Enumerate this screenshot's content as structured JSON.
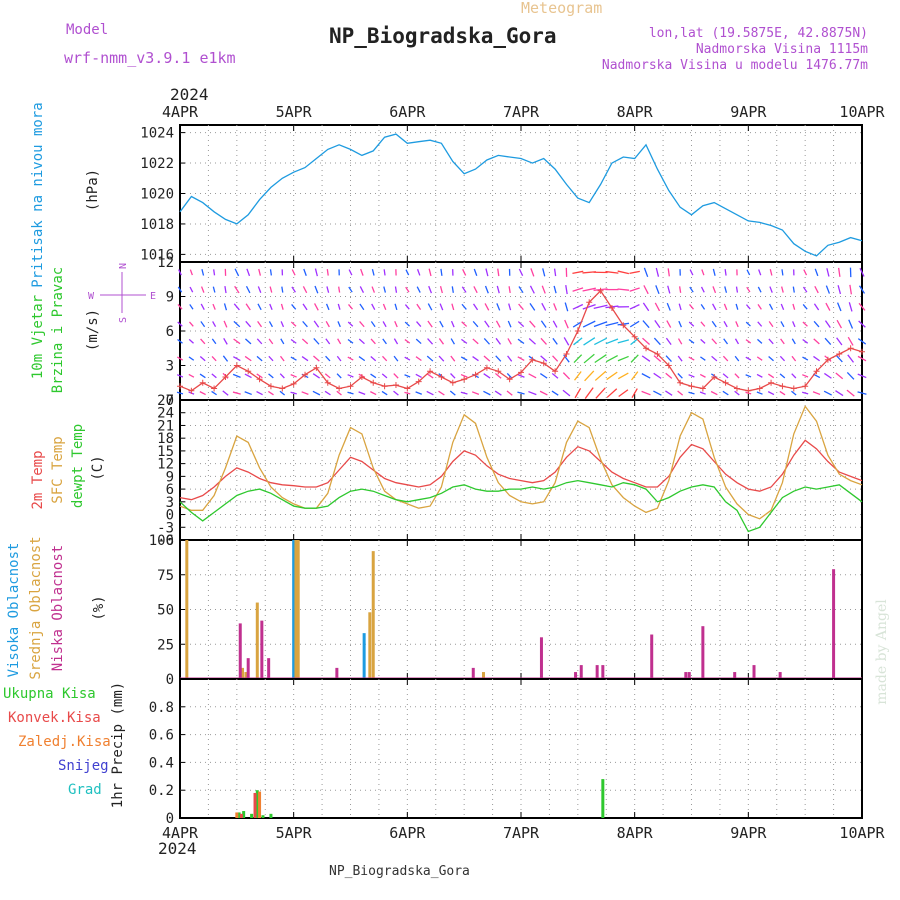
{
  "header": {
    "title": "NP_Biogradska_Gora",
    "subtitle": "Meteogram",
    "model_label": "Model",
    "model_name": "wrf-nmm_v3.9.1 e1km",
    "coords": "lon,lat (19.5875E, 42.8875N)",
    "elevation": "Nadmorska Visina 1115m",
    "model_elevation": "Nadmorska Visina u modelu 1476.77m",
    "footer": "NP_Biogradska_Gora",
    "credit": "made by Angel"
  },
  "colors": {
    "pressure": "#1e9be0",
    "temp2m": "#e84a4a",
    "sfc_temp": "#d9a440",
    "dewpoint": "#2ec82e",
    "high_cloud": "#1e9be0",
    "mid_cloud": "#d9a440",
    "low_cloud": "#c0308f",
    "purple_text": "#b050d0",
    "grid": "#9a9a9a"
  },
  "chart_data": [
    {
      "type": "line",
      "panel": "pressure",
      "ylabel_lines": [
        "Pritisak na nivou mora",
        "(hPa)"
      ],
      "ylim": [
        1015.5,
        1024.5
      ],
      "yticks": [
        1016,
        1018,
        1020,
        1022,
        1024
      ],
      "xlim": [
        0,
        6
      ],
      "year": "2024",
      "xtick_labels": [
        "4APR",
        "5APR",
        "6APR",
        "7APR",
        "8APR",
        "9APR",
        "10APR"
      ],
      "grid": true,
      "series": [
        {
          "color": "#1e9be0",
          "x": [
            0,
            0.1,
            0.2,
            0.3,
            0.4,
            0.5,
            0.6,
            0.7,
            0.8,
            0.9,
            1.0,
            1.1,
            1.2,
            1.3,
            1.4,
            1.5,
            1.6,
            1.7,
            1.8,
            1.9,
            2.0,
            2.1,
            2.2,
            2.3,
            2.4,
            2.5,
            2.6,
            2.7,
            2.8,
            2.9,
            3.0,
            3.1,
            3.2,
            3.3,
            3.4,
            3.5,
            3.6,
            3.7,
            3.8,
            3.9,
            4.0,
            4.1,
            4.2,
            4.3,
            4.4,
            4.5,
            4.6,
            4.7,
            4.8,
            4.9,
            5.0,
            5.1,
            5.2,
            5.3,
            5.4,
            5.5,
            5.6,
            5.7,
            5.8,
            5.9,
            6.0
          ],
          "values": [
            1018.8,
            1019.8,
            1019.4,
            1018.8,
            1018.3,
            1018.0,
            1018.6,
            1019.6,
            1020.4,
            1021.0,
            1021.4,
            1021.7,
            1022.3,
            1022.9,
            1023.2,
            1022.9,
            1022.5,
            1022.8,
            1023.7,
            1023.9,
            1023.3,
            1023.4,
            1023.5,
            1023.3,
            1022.1,
            1021.3,
            1021.6,
            1022.2,
            1022.5,
            1022.4,
            1022.3,
            1022.0,
            1022.3,
            1021.6,
            1020.6,
            1019.7,
            1019.4,
            1020.6,
            1022.0,
            1022.4,
            1022.3,
            1023.2,
            1021.6,
            1020.2,
            1019.1,
            1018.6,
            1019.2,
            1019.4,
            1019.0,
            1018.6,
            1018.2,
            1018.1,
            1017.9,
            1017.6,
            1016.7,
            1016.2,
            1015.9,
            1016.6,
            1016.8,
            1017.1,
            1016.9
          ]
        }
      ]
    },
    {
      "type": "line",
      "panel": "wind",
      "ylabel_lines": [
        "10m Vjetar",
        "Brzina i Pravac",
        "(m/s)"
      ],
      "direction_key": [
        "N",
        "W",
        "E",
        "S"
      ],
      "ylim": [
        0,
        12
      ],
      "yticks": [
        0,
        3,
        6,
        9,
        12
      ],
      "xlim": [
        0,
        6
      ],
      "grid": true,
      "series": [
        {
          "name": "wind speed",
          "color": "#e84a4a",
          "x": [
            0,
            0.1,
            0.2,
            0.3,
            0.4,
            0.5,
            0.6,
            0.7,
            0.8,
            0.9,
            1.0,
            1.1,
            1.2,
            1.3,
            1.4,
            1.5,
            1.6,
            1.7,
            1.8,
            1.9,
            2.0,
            2.1,
            2.2,
            2.3,
            2.4,
            2.5,
            2.6,
            2.7,
            2.8,
            2.9,
            3.0,
            3.1,
            3.2,
            3.3,
            3.4,
            3.5,
            3.6,
            3.7,
            3.8,
            3.9,
            4.0,
            4.1,
            4.2,
            4.3,
            4.4,
            4.5,
            4.6,
            4.7,
            4.8,
            4.9,
            5.0,
            5.1,
            5.2,
            5.3,
            5.4,
            5.5,
            5.6,
            5.7,
            5.8,
            5.9,
            6.0
          ],
          "values": [
            1.2,
            0.8,
            1.5,
            1.0,
            2.0,
            3.0,
            2.5,
            1.8,
            1.2,
            1.0,
            1.4,
            2.2,
            2.8,
            1.5,
            1.0,
            1.2,
            2.0,
            1.5,
            1.2,
            1.3,
            1.0,
            1.6,
            2.5,
            2.0,
            1.5,
            1.8,
            2.2,
            2.8,
            2.5,
            1.8,
            2.4,
            3.5,
            3.2,
            2.5,
            4.0,
            6.0,
            8.5,
            9.5,
            8.0,
            6.5,
            5.5,
            4.5,
            4.0,
            3.0,
            1.5,
            1.2,
            1.0,
            2.0,
            1.5,
            1.0,
            0.8,
            1.0,
            1.5,
            1.2,
            1.0,
            1.2,
            2.5,
            3.5,
            4.0,
            4.5,
            4.2
          ]
        }
      ]
    },
    {
      "type": "line",
      "panel": "temperature",
      "ylabel_lines": [
        "2m Temp",
        "SFC Temp",
        "dewpt Temp",
        "(C)"
      ],
      "ylim": [
        -6,
        27
      ],
      "yticks": [
        -6,
        -3,
        0,
        3,
        6,
        9,
        12,
        15,
        18,
        21,
        24,
        27
      ],
      "xlim": [
        0,
        6
      ],
      "grid": true,
      "series": [
        {
          "color": "#e84a4a",
          "x": [
            0,
            0.1,
            0.2,
            0.3,
            0.4,
            0.5,
            0.6,
            0.7,
            0.8,
            0.9,
            1.0,
            1.1,
            1.2,
            1.3,
            1.4,
            1.5,
            1.6,
            1.7,
            1.8,
            1.9,
            2.0,
            2.1,
            2.2,
            2.3,
            2.4,
            2.5,
            2.6,
            2.7,
            2.8,
            2.9,
            3.0,
            3.1,
            3.2,
            3.3,
            3.4,
            3.5,
            3.6,
            3.7,
            3.8,
            3.9,
            4.0,
            4.1,
            4.2,
            4.3,
            4.4,
            4.5,
            4.6,
            4.7,
            4.8,
            4.9,
            5.0,
            5.1,
            5.2,
            5.3,
            5.4,
            5.5,
            5.6,
            5.7,
            5.8,
            5.9,
            6.0
          ],
          "values": [
            4.0,
            3.5,
            4.5,
            6.5,
            9.0,
            11.0,
            10.0,
            8.5,
            7.5,
            7.0,
            6.8,
            6.5,
            6.5,
            7.5,
            10.5,
            13.5,
            12.5,
            10.5,
            8.5,
            7.5,
            7.0,
            6.5,
            7.0,
            9.0,
            12.5,
            15.0,
            14.0,
            11.5,
            9.5,
            8.5,
            8.0,
            7.5,
            8.0,
            10.0,
            13.5,
            16.0,
            15.0,
            12.5,
            10.0,
            8.5,
            7.5,
            6.5,
            6.5,
            9.0,
            13.5,
            16.5,
            15.5,
            12.5,
            9.5,
            7.5,
            6.0,
            5.5,
            6.5,
            9.5,
            14.0,
            17.5,
            15.5,
            12.5,
            10.0,
            9.0,
            8.0
          ]
        },
        {
          "color": "#d9a440",
          "x": [
            0,
            0.1,
            0.2,
            0.3,
            0.4,
            0.5,
            0.6,
            0.7,
            0.8,
            0.9,
            1.0,
            1.1,
            1.2,
            1.3,
            1.4,
            1.5,
            1.6,
            1.7,
            1.8,
            1.9,
            2.0,
            2.1,
            2.2,
            2.3,
            2.4,
            2.5,
            2.6,
            2.7,
            2.8,
            2.9,
            3.0,
            3.1,
            3.2,
            3.3,
            3.4,
            3.5,
            3.6,
            3.7,
            3.8,
            3.9,
            4.0,
            4.1,
            4.2,
            4.3,
            4.4,
            4.5,
            4.6,
            4.7,
            4.8,
            4.9,
            5.0,
            5.1,
            5.2,
            5.3,
            5.4,
            5.5,
            5.6,
            5.7,
            5.8,
            5.9,
            6.0
          ],
          "values": [
            2.0,
            1.0,
            1.0,
            4.5,
            11.0,
            18.5,
            17.0,
            11.0,
            6.5,
            4.0,
            2.5,
            1.5,
            1.5,
            5.0,
            14.0,
            20.5,
            19.0,
            11.0,
            5.5,
            3.5,
            2.5,
            1.5,
            2.0,
            6.5,
            17.0,
            23.5,
            21.5,
            13.5,
            7.5,
            4.5,
            3.0,
            2.5,
            3.0,
            7.5,
            17.0,
            22.0,
            20.5,
            13.0,
            7.0,
            4.0,
            2.0,
            0.5,
            1.5,
            8.0,
            18.5,
            24.0,
            22.5,
            13.5,
            6.5,
            2.5,
            0.0,
            -1.0,
            1.0,
            7.5,
            19.0,
            25.5,
            22.0,
            14.0,
            9.5,
            8.0,
            7.0
          ]
        },
        {
          "color": "#2ec82e",
          "x": [
            0,
            0.1,
            0.2,
            0.3,
            0.4,
            0.5,
            0.6,
            0.7,
            0.8,
            0.9,
            1.0,
            1.1,
            1.2,
            1.3,
            1.4,
            1.5,
            1.6,
            1.7,
            1.8,
            1.9,
            2.0,
            2.1,
            2.2,
            2.3,
            2.4,
            2.5,
            2.6,
            2.7,
            2.8,
            2.9,
            3.0,
            3.1,
            3.2,
            3.3,
            3.4,
            3.5,
            3.6,
            3.7,
            3.8,
            3.9,
            4.0,
            4.1,
            4.2,
            4.3,
            4.4,
            4.5,
            4.6,
            4.7,
            4.8,
            4.9,
            5.0,
            5.1,
            5.2,
            5.3,
            5.4,
            5.5,
            5.6,
            5.7,
            5.8,
            5.9,
            6.0
          ],
          "values": [
            3.0,
            0.5,
            -1.5,
            0.5,
            2.5,
            4.5,
            5.5,
            6.0,
            5.0,
            3.5,
            2.0,
            1.5,
            1.5,
            2.0,
            4.0,
            5.5,
            6.0,
            5.5,
            4.5,
            3.5,
            3.0,
            3.5,
            4.0,
            5.0,
            6.5,
            7.0,
            6.0,
            5.5,
            5.5,
            6.0,
            6.0,
            6.5,
            6.0,
            6.5,
            7.5,
            8.0,
            7.5,
            7.0,
            6.5,
            7.5,
            7.0,
            6.0,
            3.0,
            4.0,
            5.5,
            6.5,
            7.0,
            6.5,
            3.0,
            1.0,
            -4.0,
            -3.0,
            0.5,
            4.0,
            5.5,
            6.5,
            6.0,
            6.5,
            7.0,
            5.0,
            3.0
          ]
        }
      ]
    },
    {
      "type": "bar",
      "panel": "clouds",
      "ylabel_lines": [
        "Visoka Oblacnost",
        "Srednja Oblacnost",
        "Niska Oblacnost",
        "(%)"
      ],
      "ylim": [
        0,
        100
      ],
      "yticks": [
        0,
        25,
        50,
        75,
        100
      ],
      "xlim": [
        0,
        6
      ],
      "grid": true,
      "series": [
        {
          "name": "high",
          "color": "#1e9be0",
          "x": [
            1.0,
            1.02,
            1.62
          ],
          "values": [
            100,
            100,
            33
          ]
        },
        {
          "name": "mid",
          "color": "#d9a440",
          "x": [
            0.06,
            0.55,
            0.58,
            0.68,
            1.02,
            1.04,
            1.67,
            1.7,
            2.67
          ],
          "values": [
            100,
            8,
            5,
            55,
            100,
            100,
            48,
            92,
            5
          ]
        },
        {
          "name": "low",
          "color": "#c0308f",
          "x": [
            0.53,
            0.6,
            0.72,
            0.78,
            1.38,
            2.58,
            3.18,
            3.48,
            3.53,
            3.67,
            3.72,
            4.15,
            4.45,
            4.48,
            4.6,
            4.88,
            5.05,
            5.28,
            5.75
          ],
          "values": [
            40,
            15,
            42,
            15,
            8,
            8,
            30,
            5,
            10,
            10,
            10,
            32,
            5,
            5,
            38,
            5,
            10,
            5,
            79
          ]
        }
      ]
    },
    {
      "type": "bar",
      "panel": "precip",
      "ylabel_lines": [
        "1hr Precip (mm)"
      ],
      "legend_entries": [
        {
          "label": "Ukupna Kisa",
          "color": "#2ec82e"
        },
        {
          "label": "Konvek.Kisa",
          "color": "#e84a4a"
        },
        {
          "label": "Zaledj.Kisa",
          "color": "#f08030"
        },
        {
          "label": "Snijeg",
          "color": "#4040d0"
        },
        {
          "label": "Grad",
          "color": "#20c0c0"
        }
      ],
      "ylim": [
        0,
        1.0
      ],
      "yticks": [
        0,
        0.2,
        0.4,
        0.6,
        0.8
      ],
      "ytick_labels": [
        "0",
        "0.2",
        "0.4",
        "0.6",
        "0.8"
      ],
      "xlim": [
        0,
        6
      ],
      "grid": true,
      "series": [
        {
          "name": "Ukupna Kisa",
          "color": "#2ec82e",
          "x": [
            0.52,
            0.56,
            0.63,
            0.68,
            0.73,
            0.8,
            3.72
          ],
          "values": [
            0.04,
            0.05,
            0.03,
            0.2,
            0.02,
            0.03,
            0.28
          ]
        },
        {
          "name": "Konvek.Kisa",
          "color": "#e84a4a",
          "x": [
            0.54,
            0.66
          ],
          "values": [
            0.03,
            0.18
          ]
        },
        {
          "name": "Zaledj.Kisa",
          "color": "#f08030",
          "x": [
            0.5,
            0.7
          ],
          "values": [
            0.04,
            0.19
          ]
        }
      ]
    }
  ]
}
